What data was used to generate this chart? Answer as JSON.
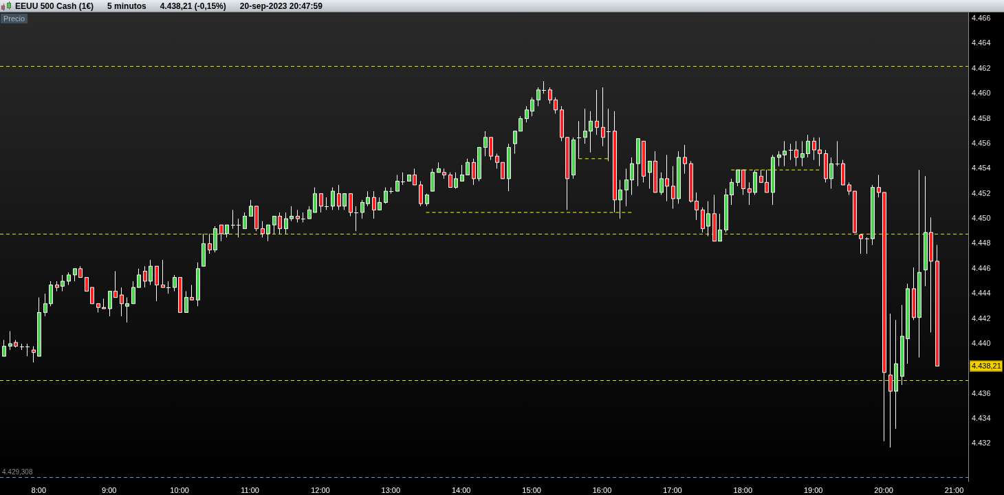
{
  "chart_data": {
    "type": "candlestick",
    "title": "EEUU 500 Cash (1€)",
    "subtitle": "5 minutos",
    "ylabel": "Precio",
    "annotations": [
      "4.438,21 (-0,15%)",
      "20-sep-2023 20:47:59"
    ],
    "x": [
      7.5,
      7.5833,
      7.6667,
      7.75,
      7.8333,
      7.9167,
      8,
      8.0833,
      8.1667,
      8.25,
      8.3333,
      8.4167,
      8.5,
      8.5833,
      8.6667,
      8.75,
      8.8333,
      8.9167,
      9,
      9.0833,
      9.1667,
      9.25,
      9.3333,
      9.4167,
      9.5,
      9.5833,
      9.6667,
      9.75,
      9.8333,
      9.9167,
      10,
      10.0833,
      10.1667,
      10.25,
      10.3333,
      10.4167,
      10.5,
      10.5833,
      10.6667,
      10.75,
      10.8333,
      10.9167,
      11,
      11.0833,
      11.1667,
      11.25,
      11.3333,
      11.4167,
      11.5,
      11.5833,
      11.6667,
      11.75,
      11.8333,
      11.9167,
      12,
      12.0833,
      12.1667,
      12.25,
      12.3333,
      12.4167,
      12.5,
      12.5833,
      12.6667,
      12.75,
      12.8333,
      12.9167,
      13,
      13.0833,
      13.1667,
      13.25,
      13.3333,
      13.4167,
      13.5,
      13.5833,
      13.6667,
      13.75,
      13.8333,
      13.9167,
      14,
      14.0833,
      14.1667,
      14.25,
      14.3333,
      14.4167,
      14.5,
      14.5833,
      14.6667,
      14.75,
      14.8333,
      14.9167,
      15,
      15.0833,
      15.1667,
      15.25,
      15.3333,
      15.4167,
      15.5,
      15.5833,
      15.6667,
      15.75,
      15.8333,
      15.9167,
      16,
      16.0833,
      16.1667,
      16.25,
      16.3333,
      16.4167,
      16.5,
      16.5833,
      16.6667,
      16.75,
      16.8333,
      16.9167,
      17,
      17.0833,
      17.1667,
      17.25,
      17.3333,
      17.4167,
      17.5,
      17.5833,
      17.6667,
      17.75,
      17.8333,
      17.9167,
      18,
      18.0833,
      18.1667,
      18.25,
      18.3333,
      18.4167,
      18.5,
      18.5833,
      18.6667,
      18.75,
      18.8333,
      18.9167,
      19,
      19.0833,
      19.1667,
      19.25,
      19.3333,
      19.4167,
      19.5,
      19.5833,
      19.6667,
      19.75,
      19.8333,
      19.9167,
      20,
      20.0833,
      20.1667,
      20.25,
      20.3333,
      20.4167,
      20.5,
      20.5833,
      20.6667,
      20.75
    ],
    "ohlc": [
      [
        4439.0,
        4440.3,
        4439.0,
        4439.8
      ],
      [
        4439.8,
        4441.0,
        4439.5,
        4440.0
      ],
      [
        4440.1,
        4440.3,
        4439.7,
        4439.8
      ],
      [
        4439.8,
        4440.0,
        4439.5,
        4439.8
      ],
      [
        4439.8,
        4440.0,
        4439.0,
        4439.8
      ],
      [
        4439.5,
        4439.8,
        4438.5,
        4439.3
      ],
      [
        4439.0,
        4443.7,
        4439.0,
        4442.5
      ],
      [
        4442.5,
        4444.0,
        4442.2,
        4443.2
      ],
      [
        4443.2,
        4445.0,
        4443.0,
        4444.7
      ],
      [
        4444.7,
        4445.0,
        4444.2,
        4444.5
      ],
      [
        4444.6,
        4445.5,
        4444.2,
        4445.0
      ],
      [
        4445.0,
        4445.7,
        4444.7,
        4445.5
      ],
      [
        4445.5,
        4446.0,
        4445.0,
        4446.0
      ],
      [
        4446.0,
        4446.2,
        4445.3,
        4445.3
      ],
      [
        4445.3,
        4445.3,
        4444.2,
        4444.2
      ],
      [
        4444.5,
        4444.5,
        4443.2,
        4443.2
      ],
      [
        4443.2,
        4443.2,
        4442.5,
        4442.9
      ],
      [
        4442.9,
        4443.6,
        4442.8,
        4442.8
      ],
      [
        4442.8,
        4444.2,
        4442.2,
        4444.2
      ],
      [
        4444.2,
        4445.8,
        4443.7,
        4443.7
      ],
      [
        4443.9,
        4444.5,
        4442.2,
        4443.2
      ],
      [
        4443.0,
        4443.7,
        4441.7,
        4443.2
      ],
      [
        4443.2,
        4445.0,
        4443.2,
        4444.5
      ],
      [
        4444.5,
        4446.0,
        4444.5,
        4445.5
      ],
      [
        4445.8,
        4446.2,
        4444.5,
        4445.0
      ],
      [
        4445.0,
        4446.7,
        4444.7,
        4446.2
      ],
      [
        4446.2,
        4446.2,
        4443.4,
        4444.7
      ],
      [
        4444.7,
        4446.7,
        4444.5,
        4444.5
      ],
      [
        4444.5,
        4445.0,
        4444.0,
        4444.5
      ],
      [
        4444.5,
        4445.5,
        4444.2,
        4445.3
      ],
      [
        4445.3,
        4445.3,
        4442.5,
        4442.5
      ],
      [
        4442.5,
        4444.2,
        4442.5,
        4443.7
      ],
      [
        4443.7,
        4444.7,
        4443.5,
        4443.5
      ],
      [
        4443.5,
        4446.5,
        4443.0,
        4446.0
      ],
      [
        4446.2,
        4448.8,
        4446.2,
        4448.0
      ],
      [
        4448.0,
        4448.8,
        4447.2,
        4447.5
      ],
      [
        4447.5,
        4449.4,
        4447.3,
        4449.2
      ],
      [
        4449.5,
        4449.5,
        4448.2,
        4448.8
      ],
      [
        4448.8,
        4449.5,
        4448.5,
        4449.5
      ],
      [
        4449.5,
        4450.7,
        4449.2,
        4449.5
      ],
      [
        4449.5,
        4450.0,
        4448.5,
        4449.5
      ],
      [
        4449.2,
        4450.5,
        4449.2,
        4450.2
      ],
      [
        4450.2,
        4451.5,
        4450.2,
        4451.0
      ],
      [
        4451.0,
        4451.0,
        4449.0,
        4449.2
      ],
      [
        4449.2,
        4449.8,
        4448.5,
        4448.8
      ],
      [
        4448.8,
        4449.5,
        4448.2,
        4449.5
      ],
      [
        4449.5,
        4450.2,
        4448.8,
        4450.2
      ],
      [
        4450.2,
        4450.5,
        4448.8,
        4449.2
      ],
      [
        4449.2,
        4450.5,
        4448.8,
        4450.0
      ],
      [
        4450.0,
        4451.0,
        4449.8,
        4450.2
      ],
      [
        4450.2,
        4450.7,
        4449.7,
        4450.0
      ],
      [
        4450.0,
        4450.5,
        4449.7,
        4450.0
      ],
      [
        4450.0,
        4451.0,
        4450.0,
        4450.7
      ],
      [
        4450.5,
        4452.5,
        4450.5,
        4452.0
      ],
      [
        4452.0,
        4452.0,
        4450.5,
        4451.0
      ],
      [
        4451.0,
        4451.7,
        4450.7,
        4451.0
      ],
      [
        4451.0,
        4452.5,
        4450.7,
        4452.2
      ],
      [
        4452.0,
        4452.7,
        4450.7,
        4451.0
      ],
      [
        4451.0,
        4452.0,
        4450.7,
        4452.0
      ],
      [
        4452.0,
        4452.0,
        4450.2,
        4450.5
      ],
      [
        4450.5,
        4451.0,
        4449.0,
        4450.5
      ],
      [
        4450.5,
        4451.5,
        4450.0,
        4451.3
      ],
      [
        4451.2,
        4452.2,
        4451.0,
        4451.7
      ],
      [
        4451.7,
        4452.2,
        4450.0,
        4450.7
      ],
      [
        4450.7,
        4451.7,
        4450.7,
        4451.3
      ],
      [
        4451.3,
        4452.5,
        4451.2,
        4452.2
      ],
      [
        4452.2,
        4452.5,
        4452.0,
        4452.2
      ],
      [
        4452.2,
        4453.5,
        4452.2,
        4453.0
      ],
      [
        4453.0,
        4453.7,
        4452.7,
        4453.0
      ],
      [
        4453.0,
        4453.5,
        4453.0,
        4453.5
      ],
      [
        4453.5,
        4454.0,
        4452.7,
        4452.7
      ],
      [
        4452.7,
        4453.0,
        4451.0,
        4451.2
      ],
      [
        4451.2,
        4452.0,
        4451.0,
        4451.9
      ],
      [
        4452.2,
        4454.0,
        4452.2,
        4453.7
      ],
      [
        4453.7,
        4454.5,
        4453.7,
        4454.0
      ],
      [
        4453.7,
        4454.0,
        4453.2,
        4453.5
      ],
      [
        4453.5,
        4453.7,
        4452.5,
        4452.5
      ],
      [
        4452.5,
        4453.7,
        4452.4,
        4453.2
      ],
      [
        4453.0,
        4454.3,
        4453.0,
        4453.5
      ],
      [
        4453.5,
        4454.8,
        4453.5,
        4454.5
      ],
      [
        4454.5,
        4454.8,
        4452.7,
        4453.2
      ],
      [
        4453.2,
        4455.7,
        4453.0,
        4455.7
      ],
      [
        4455.7,
        4457.0,
        4455.0,
        4456.5
      ],
      [
        4456.5,
        4456.5,
        4454.7,
        4455.0
      ],
      [
        4455.0,
        4455.2,
        4454.0,
        4454.5
      ],
      [
        4454.5,
        4454.5,
        4453.2,
        4453.2
      ],
      [
        4453.2,
        4456.0,
        4452.2,
        4455.7
      ],
      [
        4456.0,
        4457.0,
        4455.2,
        4457.0
      ],
      [
        4457.0,
        4458.2,
        4457.0,
        4458.0
      ],
      [
        4458.0,
        4459.0,
        4457.7,
        4458.7
      ],
      [
        4458.6,
        4459.7,
        4458.2,
        4459.5
      ],
      [
        4459.5,
        4460.5,
        4459.0,
        4460.3
      ],
      [
        4460.3,
        4461.0,
        4460.0,
        4460.3
      ],
      [
        4460.3,
        4460.5,
        4459.2,
        4459.5
      ],
      [
        4459.5,
        4459.7,
        4458.4,
        4458.7
      ],
      [
        4458.7,
        4459.0,
        4456.2,
        4456.5
      ],
      [
        4456.5,
        4456.5,
        4450.7,
        4453.2
      ],
      [
        4453.5,
        4456.5,
        4453.2,
        4456.3
      ],
      [
        4456.5,
        4457.8,
        4454.8,
        4456.5
      ],
      [
        4456.5,
        4458.8,
        4456.0,
        4457.0
      ],
      [
        4457.0,
        4458.6,
        4455.3,
        4457.8
      ],
      [
        4457.8,
        4460.3,
        4456.7,
        4457.3
      ],
      [
        4457.3,
        4460.5,
        4455.8,
        4456.5
      ],
      [
        4457.0,
        4458.8,
        4454.6,
        4457.0
      ],
      [
        4457.0,
        4458.6,
        4450.5,
        4451.5
      ],
      [
        4451.5,
        4453.1,
        4450.0,
        4452.3
      ],
      [
        4452.3,
        4454.0,
        4451.0,
        4453.1
      ],
      [
        4453.1,
        4454.9,
        4451.9,
        4454.4
      ],
      [
        4454.4,
        4456.4,
        4452.6,
        4456.4
      ],
      [
        4456.2,
        4456.2,
        4452.9,
        4453.4
      ],
      [
        4453.7,
        4454.6,
        4452.4,
        4454.6
      ],
      [
        4454.6,
        4455.4,
        4452.1,
        4452.1
      ],
      [
        4452.1,
        4453.7,
        4451.9,
        4453.2
      ],
      [
        4453.2,
        4455.1,
        4451.4,
        4452.6
      ],
      [
        4452.6,
        4454.2,
        4450.8,
        4451.6
      ],
      [
        4451.6,
        4455.4,
        4451.2,
        4454.9
      ],
      [
        4454.9,
        4455.9,
        4453.6,
        4454.4
      ],
      [
        4454.4,
        4454.6,
        4451.3,
        4451.4
      ],
      [
        4451.4,
        4452.1,
        4449.9,
        4450.7
      ],
      [
        4450.7,
        4450.9,
        4448.9,
        4449.2
      ],
      [
        4449.4,
        4451.4,
        4448.6,
        4450.4
      ],
      [
        4450.4,
        4451.9,
        4448.2,
        4448.2
      ],
      [
        4448.2,
        4450.4,
        4448.2,
        4449.1
      ],
      [
        4449.1,
        4452.4,
        4448.9,
        4451.9
      ],
      [
        4451.9,
        4453.2,
        4451.1,
        4452.9
      ],
      [
        4452.9,
        4453.9,
        4452.6,
        4453.9
      ],
      [
        4453.9,
        4453.9,
        4451.9,
        4452.4
      ],
      [
        4452.4,
        4452.9,
        4451.1,
        4452.1
      ],
      [
        4452.1,
        4453.9,
        4451.9,
        4453.7
      ],
      [
        4453.4,
        4453.9,
        4452.9,
        4452.9
      ],
      [
        4452.9,
        4453.9,
        4452.1,
        4452.1
      ],
      [
        4452.1,
        4455.1,
        4451.1,
        4454.9
      ],
      [
        4454.9,
        4455.4,
        4454.2,
        4455.1
      ],
      [
        4455.1,
        4456.2,
        4454.2,
        4455.4
      ],
      [
        4455.5,
        4456.0,
        4454.7,
        4455.5
      ],
      [
        4455.5,
        4456.2,
        4454.2,
        4454.9
      ],
      [
        4454.9,
        4456.2,
        4454.2,
        4455.2
      ],
      [
        4455.2,
        4456.7,
        4454.9,
        4456.2
      ],
      [
        4456.2,
        4456.5,
        4454.7,
        4455.5
      ],
      [
        4455.5,
        4456.5,
        4454.2,
        4455.2
      ],
      [
        4455.2,
        4455.5,
        4452.9,
        4453.2
      ],
      [
        4453.2,
        4454.9,
        4452.4,
        4454.4
      ],
      [
        4454.4,
        4456.2,
        4454.2,
        4454.4
      ],
      [
        4454.4,
        4454.7,
        4452.7,
        4452.7
      ],
      [
        4452.7,
        4452.9,
        4451.9,
        4452.2
      ],
      [
        4452.2,
        4452.2,
        4448.9,
        4448.9
      ],
      [
        4448.7,
        4448.7,
        4447.2,
        4448.4
      ],
      [
        4448.4,
        4448.5,
        4447.2,
        4448.4
      ],
      [
        4448.4,
        4452.7,
        4447.9,
        4452.5
      ],
      [
        4452.5,
        4453.5,
        4451.7,
        4452.1
      ],
      [
        4452.1,
        4452.1,
        4432.2,
        4437.7
      ],
      [
        4437.5,
        4442.4,
        4431.7,
        4436.2
      ],
      [
        4436.2,
        4441.9,
        4433.2,
        4438.4
      ],
      [
        4437.4,
        4443.1,
        4436.7,
        4440.6
      ],
      [
        4440.4,
        4444.8,
        4438.4,
        4444.4
      ],
      [
        4444.4,
        4446.1,
        4441.9,
        4442.1
      ],
      [
        4442.1,
        4453.9,
        4438.9,
        4445.7
      ],
      [
        4445.9,
        4453.4,
        4444.6,
        4448.9
      ],
      [
        4448.9,
        4450.1,
        4440.9,
        4446.6
      ],
      [
        4446.6,
        4447.9,
        4438.2,
        4438.21
      ]
    ],
    "colors": [
      "#4cd44c",
      "#4cd44c",
      "#ff2020",
      "#ffffff",
      "#ffffff",
      "#ff2020",
      "#4cd44c",
      "#4cd44c",
      "#4cd44c",
      "#ff2020",
      "#4cd44c",
      "#4cd44c",
      "#4cd44c",
      "#ff2020",
      "#ff2020",
      "#ff2020",
      "#ff2020",
      "#ff2020",
      "#4cd44c",
      "#ff2020",
      "#ff2020",
      "#4cd44c",
      "#4cd44c",
      "#4cd44c",
      "#ff2020",
      "#4cd44c",
      "#ff2020",
      "#ff2020",
      "#ffffff",
      "#4cd44c",
      "#ff2020",
      "#4cd44c",
      "#ff2020",
      "#4cd44c",
      "#4cd44c",
      "#ff2020",
      "#4cd44c",
      "#ff2020",
      "#4cd44c",
      "#ffffff",
      "#ffffff",
      "#4cd44c",
      "#4cd44c",
      "#ff2020",
      "#ff2020",
      "#4cd44c",
      "#4cd44c",
      "#ff2020",
      "#4cd44c",
      "#4cd44c",
      "#ff2020",
      "#ffffff",
      "#4cd44c",
      "#4cd44c",
      "#ff2020",
      "#ffffff",
      "#4cd44c",
      "#ff2020",
      "#4cd44c",
      "#ff2020",
      "#ffffff",
      "#4cd44c",
      "#4cd44c",
      "#ff2020",
      "#4cd44c",
      "#4cd44c",
      "#ffffff",
      "#4cd44c",
      "#ffffff",
      "#4cd44c",
      "#ff2020",
      "#ff2020",
      "#4cd44c",
      "#4cd44c",
      "#4cd44c",
      "#ff2020",
      "#ff2020",
      "#4cd44c",
      "#4cd44c",
      "#4cd44c",
      "#ff2020",
      "#4cd44c",
      "#4cd44c",
      "#ff2020",
      "#ff2020",
      "#ff2020",
      "#4cd44c",
      "#4cd44c",
      "#4cd44c",
      "#4cd44c",
      "#4cd44c",
      "#4cd44c",
      "#ffffff",
      "#ff2020",
      "#ff2020",
      "#ff2020",
      "#ff2020",
      "#4cd44c",
      "#ffffff",
      "#4cd44c",
      "#4cd44c",
      "#ff2020",
      "#ff2020",
      "#ffffff",
      "#ff2020",
      "#4cd44c",
      "#4cd44c",
      "#4cd44c",
      "#4cd44c",
      "#ff2020",
      "#4cd44c",
      "#ff2020",
      "#4cd44c",
      "#ff2020",
      "#ff2020",
      "#4cd44c",
      "#ff2020",
      "#ff2020",
      "#ff2020",
      "#ff2020",
      "#4cd44c",
      "#ff2020",
      "#4cd44c",
      "#4cd44c",
      "#4cd44c",
      "#4cd44c",
      "#ff2020",
      "#ff2020",
      "#4cd44c",
      "#ff2020",
      "#ff2020",
      "#4cd44c",
      "#4cd44c",
      "#4cd44c",
      "#ffffff",
      "#ff2020",
      "#4cd44c",
      "#4cd44c",
      "#ff2020",
      "#ff2020",
      "#ff2020",
      "#4cd44c",
      "#ffffff",
      "#ff2020",
      "#ff2020",
      "#ff2020",
      "#ff2020",
      "#ffffff",
      "#4cd44c",
      "#ff2020",
      "#ff2020",
      "#ff2020",
      "#4cd44c",
      "#4cd44c",
      "#4cd44c",
      "#ff2020",
      "#4cd44c",
      "#4cd44c",
      "#ff2020",
      "#ff2020"
    ],
    "series": [
      {
        "type": "line",
        "x": [
          13.5,
          16.4167
        ],
        "values": [
          4450.5,
          4450.5
        ],
        "color": "#b4b400",
        "line_style": "dashed"
      },
      {
        "type": "line",
        "x": [
          15.6667,
          16.0833
        ],
        "values": [
          4454.8,
          4454.8
        ],
        "color": "#b4b400",
        "line_style": "dashed"
      },
      {
        "type": "line",
        "x": [
          17.8333,
          19.0833
        ],
        "values": [
          4453.9,
          4453.9
        ],
        "color": "#b4b400",
        "line_style": "dashed"
      }
    ],
    "ref_lines": [
      {
        "axis": "y",
        "value": 4462.2,
        "color": "#e6e600",
        "line_style": "dashed"
      },
      {
        "axis": "y",
        "value": 4448.8,
        "color": "#e6e600",
        "line_style": "dashed"
      },
      {
        "axis": "y",
        "value": 4437.1,
        "color": "#e6e600",
        "line_style": "dashed"
      },
      {
        "axis": "y",
        "value": 4429.308,
        "label": "4.429,308",
        "color": "#4aa8d8",
        "line_style": "dashed"
      }
    ],
    "xlim": [
      7.45,
      21.2
    ],
    "xticks": [
      {
        "value": 8,
        "label": "8:00"
      },
      {
        "value": 9,
        "label": "9:00"
      },
      {
        "value": 10,
        "label": "10:00"
      },
      {
        "value": 11,
        "label": "11:00"
      },
      {
        "value": 12,
        "label": "12:00"
      },
      {
        "value": 13,
        "label": "13:00"
      },
      {
        "value": 14,
        "label": "14:00"
      },
      {
        "value": 15,
        "label": "15:00"
      },
      {
        "value": 16,
        "label": "16:00"
      },
      {
        "value": 17,
        "label": "17:00"
      },
      {
        "value": 18,
        "label": "18:00"
      },
      {
        "value": 19,
        "label": "19:00"
      },
      {
        "value": 20,
        "label": "20:00"
      },
      {
        "value": 21,
        "label": "21:00"
      }
    ],
    "ylim": [
      4429,
      4466.5
    ],
    "yticks": [
      {
        "value": 4432,
        "label": "4.432"
      },
      {
        "value": 4434,
        "label": "4.434"
      },
      {
        "value": 4436,
        "label": "4.436"
      },
      {
        "value": 4438.21,
        "label": "4.438,21"
      },
      {
        "value": 4440,
        "label": "4.440"
      },
      {
        "value": 4442,
        "label": "4.442"
      },
      {
        "value": 4444,
        "label": "4.444"
      },
      {
        "value": 4446,
        "label": "4.446"
      },
      {
        "value": 4448,
        "label": "4.448"
      },
      {
        "value": 4450,
        "label": "4.450"
      },
      {
        "value": 4452,
        "label": "4.452"
      },
      {
        "value": 4454,
        "label": "4.454"
      },
      {
        "value": 4456,
        "label": "4.456"
      },
      {
        "value": 4458,
        "label": "4.458"
      },
      {
        "value": 4460,
        "label": "4.460"
      },
      {
        "value": 4462,
        "label": "4.462"
      },
      {
        "value": 4464,
        "label": "4.464"
      },
      {
        "value": 4466,
        "label": "4.466"
      }
    ],
    "grid": false,
    "legend": false
  }
}
